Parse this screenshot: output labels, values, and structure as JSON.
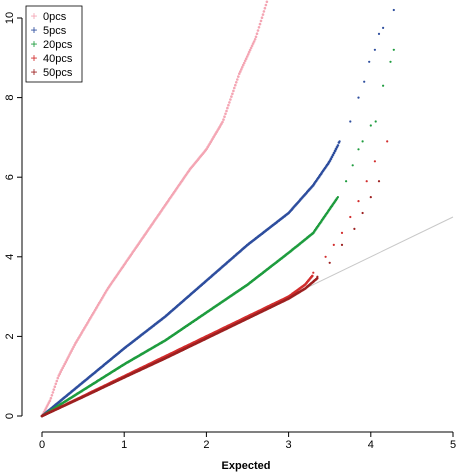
{
  "chart_data": {
    "type": "scatter",
    "title": "",
    "xlabel": "Expected",
    "ylabel": "",
    "xlim": [
      0,
      5
    ],
    "ylim": [
      0,
      10.5
    ],
    "x_ticks": [
      "0",
      "1",
      "2",
      "3",
      "4",
      "5"
    ],
    "y_ticks": [
      "0",
      "2",
      "4",
      "6",
      "8",
      "10"
    ],
    "grid": false,
    "legend_position": "top-left",
    "reference_line": {
      "from": [
        0,
        0
      ],
      "to": [
        5,
        5
      ],
      "color": "#c8c8c8"
    },
    "series": [
      {
        "name": "0pcs",
        "color": "#f4a6b4",
        "points": [
          [
            0,
            0
          ],
          [
            0.1,
            0.4
          ],
          [
            0.2,
            1.0
          ],
          [
            0.4,
            1.8
          ],
          [
            0.6,
            2.5
          ],
          [
            0.8,
            3.2
          ],
          [
            1.0,
            3.8
          ],
          [
            1.2,
            4.4
          ],
          [
            1.4,
            5.0
          ],
          [
            1.6,
            5.6
          ],
          [
            1.8,
            6.2
          ],
          [
            2.0,
            6.7
          ],
          [
            2.2,
            7.4
          ],
          [
            2.4,
            8.6
          ],
          [
            2.6,
            9.5
          ],
          [
            2.75,
            10.5
          ]
        ]
      },
      {
        "name": "5pcs",
        "color": "#2e4e9e",
        "points": [
          [
            0,
            0
          ],
          [
            0.5,
            0.85
          ],
          [
            1.0,
            1.7
          ],
          [
            1.5,
            2.5
          ],
          [
            2.0,
            3.4
          ],
          [
            2.5,
            4.3
          ],
          [
            3.0,
            5.1
          ],
          [
            3.3,
            5.8
          ],
          [
            3.5,
            6.4
          ],
          [
            3.6,
            6.8
          ],
          [
            3.7,
            7.4
          ],
          [
            3.9,
            8.3
          ],
          [
            4.0,
            9.2
          ],
          [
            4.1,
            9.5
          ],
          [
            4.2,
            10.0
          ],
          [
            4.28,
            10.2
          ]
        ],
        "scatter_points": [
          [
            3.62,
            6.9
          ],
          [
            3.75,
            7.4
          ],
          [
            3.85,
            8.0
          ],
          [
            3.92,
            8.4
          ],
          [
            3.98,
            8.9
          ],
          [
            4.05,
            9.2
          ],
          [
            4.1,
            9.6
          ],
          [
            4.15,
            9.75
          ],
          [
            4.28,
            10.2
          ]
        ]
      },
      {
        "name": "20pcs",
        "color": "#1e9c3e",
        "points": [
          [
            0,
            0
          ],
          [
            0.5,
            0.65
          ],
          [
            1.0,
            1.3
          ],
          [
            1.5,
            1.9
          ],
          [
            2.0,
            2.6
          ],
          [
            2.5,
            3.3
          ],
          [
            3.0,
            4.1
          ],
          [
            3.3,
            4.6
          ],
          [
            3.5,
            5.2
          ],
          [
            3.6,
            5.5
          ],
          [
            3.75,
            6.2
          ],
          [
            3.85,
            6.6
          ],
          [
            3.95,
            7.1
          ],
          [
            4.05,
            7.4
          ],
          [
            4.15,
            7.8
          ],
          [
            4.25,
            8.4
          ]
        ],
        "scatter_points": [
          [
            3.6,
            5.5
          ],
          [
            3.7,
            5.9
          ],
          [
            3.78,
            6.3
          ],
          [
            3.85,
            6.7
          ],
          [
            3.9,
            6.9
          ],
          [
            4.0,
            7.3
          ],
          [
            4.06,
            7.4
          ],
          [
            4.15,
            8.3
          ],
          [
            4.24,
            8.9
          ],
          [
            4.28,
            9.2
          ]
        ]
      },
      {
        "name": "40pcs",
        "color": "#d22d2d",
        "points": [
          [
            0,
            0
          ],
          [
            0.5,
            0.5
          ],
          [
            1.0,
            1.0
          ],
          [
            1.5,
            1.5
          ],
          [
            2.0,
            2.0
          ],
          [
            2.5,
            2.5
          ],
          [
            3.0,
            3.0
          ],
          [
            3.2,
            3.3
          ],
          [
            3.4,
            3.8
          ],
          [
            3.5,
            4.1
          ],
          [
            3.6,
            4.4
          ],
          [
            3.7,
            4.8
          ],
          [
            3.8,
            5.2
          ],
          [
            3.9,
            5.6
          ],
          [
            4.0,
            6.2
          ],
          [
            4.2,
            6.9
          ]
        ],
        "scatter_points": [
          [
            3.3,
            3.6
          ],
          [
            3.45,
            4.0
          ],
          [
            3.55,
            4.3
          ],
          [
            3.65,
            4.6
          ],
          [
            3.75,
            5.0
          ],
          [
            3.85,
            5.4
          ],
          [
            3.95,
            5.9
          ],
          [
            4.05,
            6.4
          ],
          [
            4.2,
            6.9
          ]
        ]
      },
      {
        "name": "50pcs",
        "color": "#9c2020",
        "points": [
          [
            0,
            0
          ],
          [
            0.5,
            0.48
          ],
          [
            1.0,
            0.97
          ],
          [
            1.5,
            1.45
          ],
          [
            2.0,
            1.95
          ],
          [
            2.5,
            2.45
          ],
          [
            3.0,
            2.95
          ],
          [
            3.2,
            3.2
          ],
          [
            3.4,
            3.55
          ],
          [
            3.5,
            3.8
          ],
          [
            3.6,
            4.05
          ],
          [
            3.7,
            4.35
          ],
          [
            3.8,
            4.7
          ],
          [
            3.9,
            5.1
          ],
          [
            4.0,
            5.5
          ],
          [
            4.1,
            5.9
          ]
        ],
        "scatter_points": [
          [
            3.35,
            3.5
          ],
          [
            3.5,
            3.85
          ],
          [
            3.65,
            4.3
          ],
          [
            3.8,
            4.7
          ],
          [
            3.9,
            5.1
          ],
          [
            4.0,
            5.5
          ],
          [
            4.1,
            5.9
          ]
        ]
      }
    ]
  }
}
